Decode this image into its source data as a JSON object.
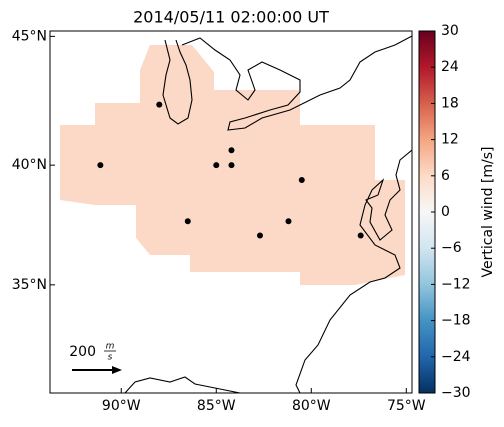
{
  "title": "2014/05/11 02:00:00 UT",
  "map": {
    "lon_lim": [
      -93.75,
      -74.7
    ],
    "lat_lim": [
      30.2,
      45.2
    ],
    "lon_ticks": [
      {
        "value": -90,
        "label": "90°W"
      },
      {
        "value": -85,
        "label": "85°W"
      },
      {
        "value": -80,
        "label": "80°W"
      },
      {
        "value": -75,
        "label": "75°W"
      }
    ],
    "lat_ticks": [
      {
        "value": 45,
        "label": "45°N"
      },
      {
        "value": 40,
        "label": "40°N"
      },
      {
        "value": 35,
        "label": "35°N"
      }
    ],
    "stations": {
      "lon": [
        -88.0,
        -84.2,
        -84.2,
        -85.0,
        -91.1,
        -80.5,
        -86.5,
        -82.7,
        -81.2,
        -77.4
      ],
      "lat": [
        42.4,
        40.6,
        40.0,
        40.0,
        40.0,
        39.4,
        37.7,
        37.1,
        37.7,
        37.1
      ]
    },
    "reference_arrow": {
      "value": "200",
      "unit_num": "m",
      "unit_den": "s"
    }
  },
  "colorbar": {
    "label": "Vertical wind [m/s]",
    "lim": [
      -30,
      30
    ],
    "ticks": [
      {
        "value": -30,
        "label": "−30"
      },
      {
        "value": -24,
        "label": "−24"
      },
      {
        "value": -18,
        "label": "−18"
      },
      {
        "value": -12,
        "label": "−12"
      },
      {
        "value": -6,
        "label": "−6"
      },
      0,
      6,
      12,
      18,
      24,
      30
    ]
  }
}
